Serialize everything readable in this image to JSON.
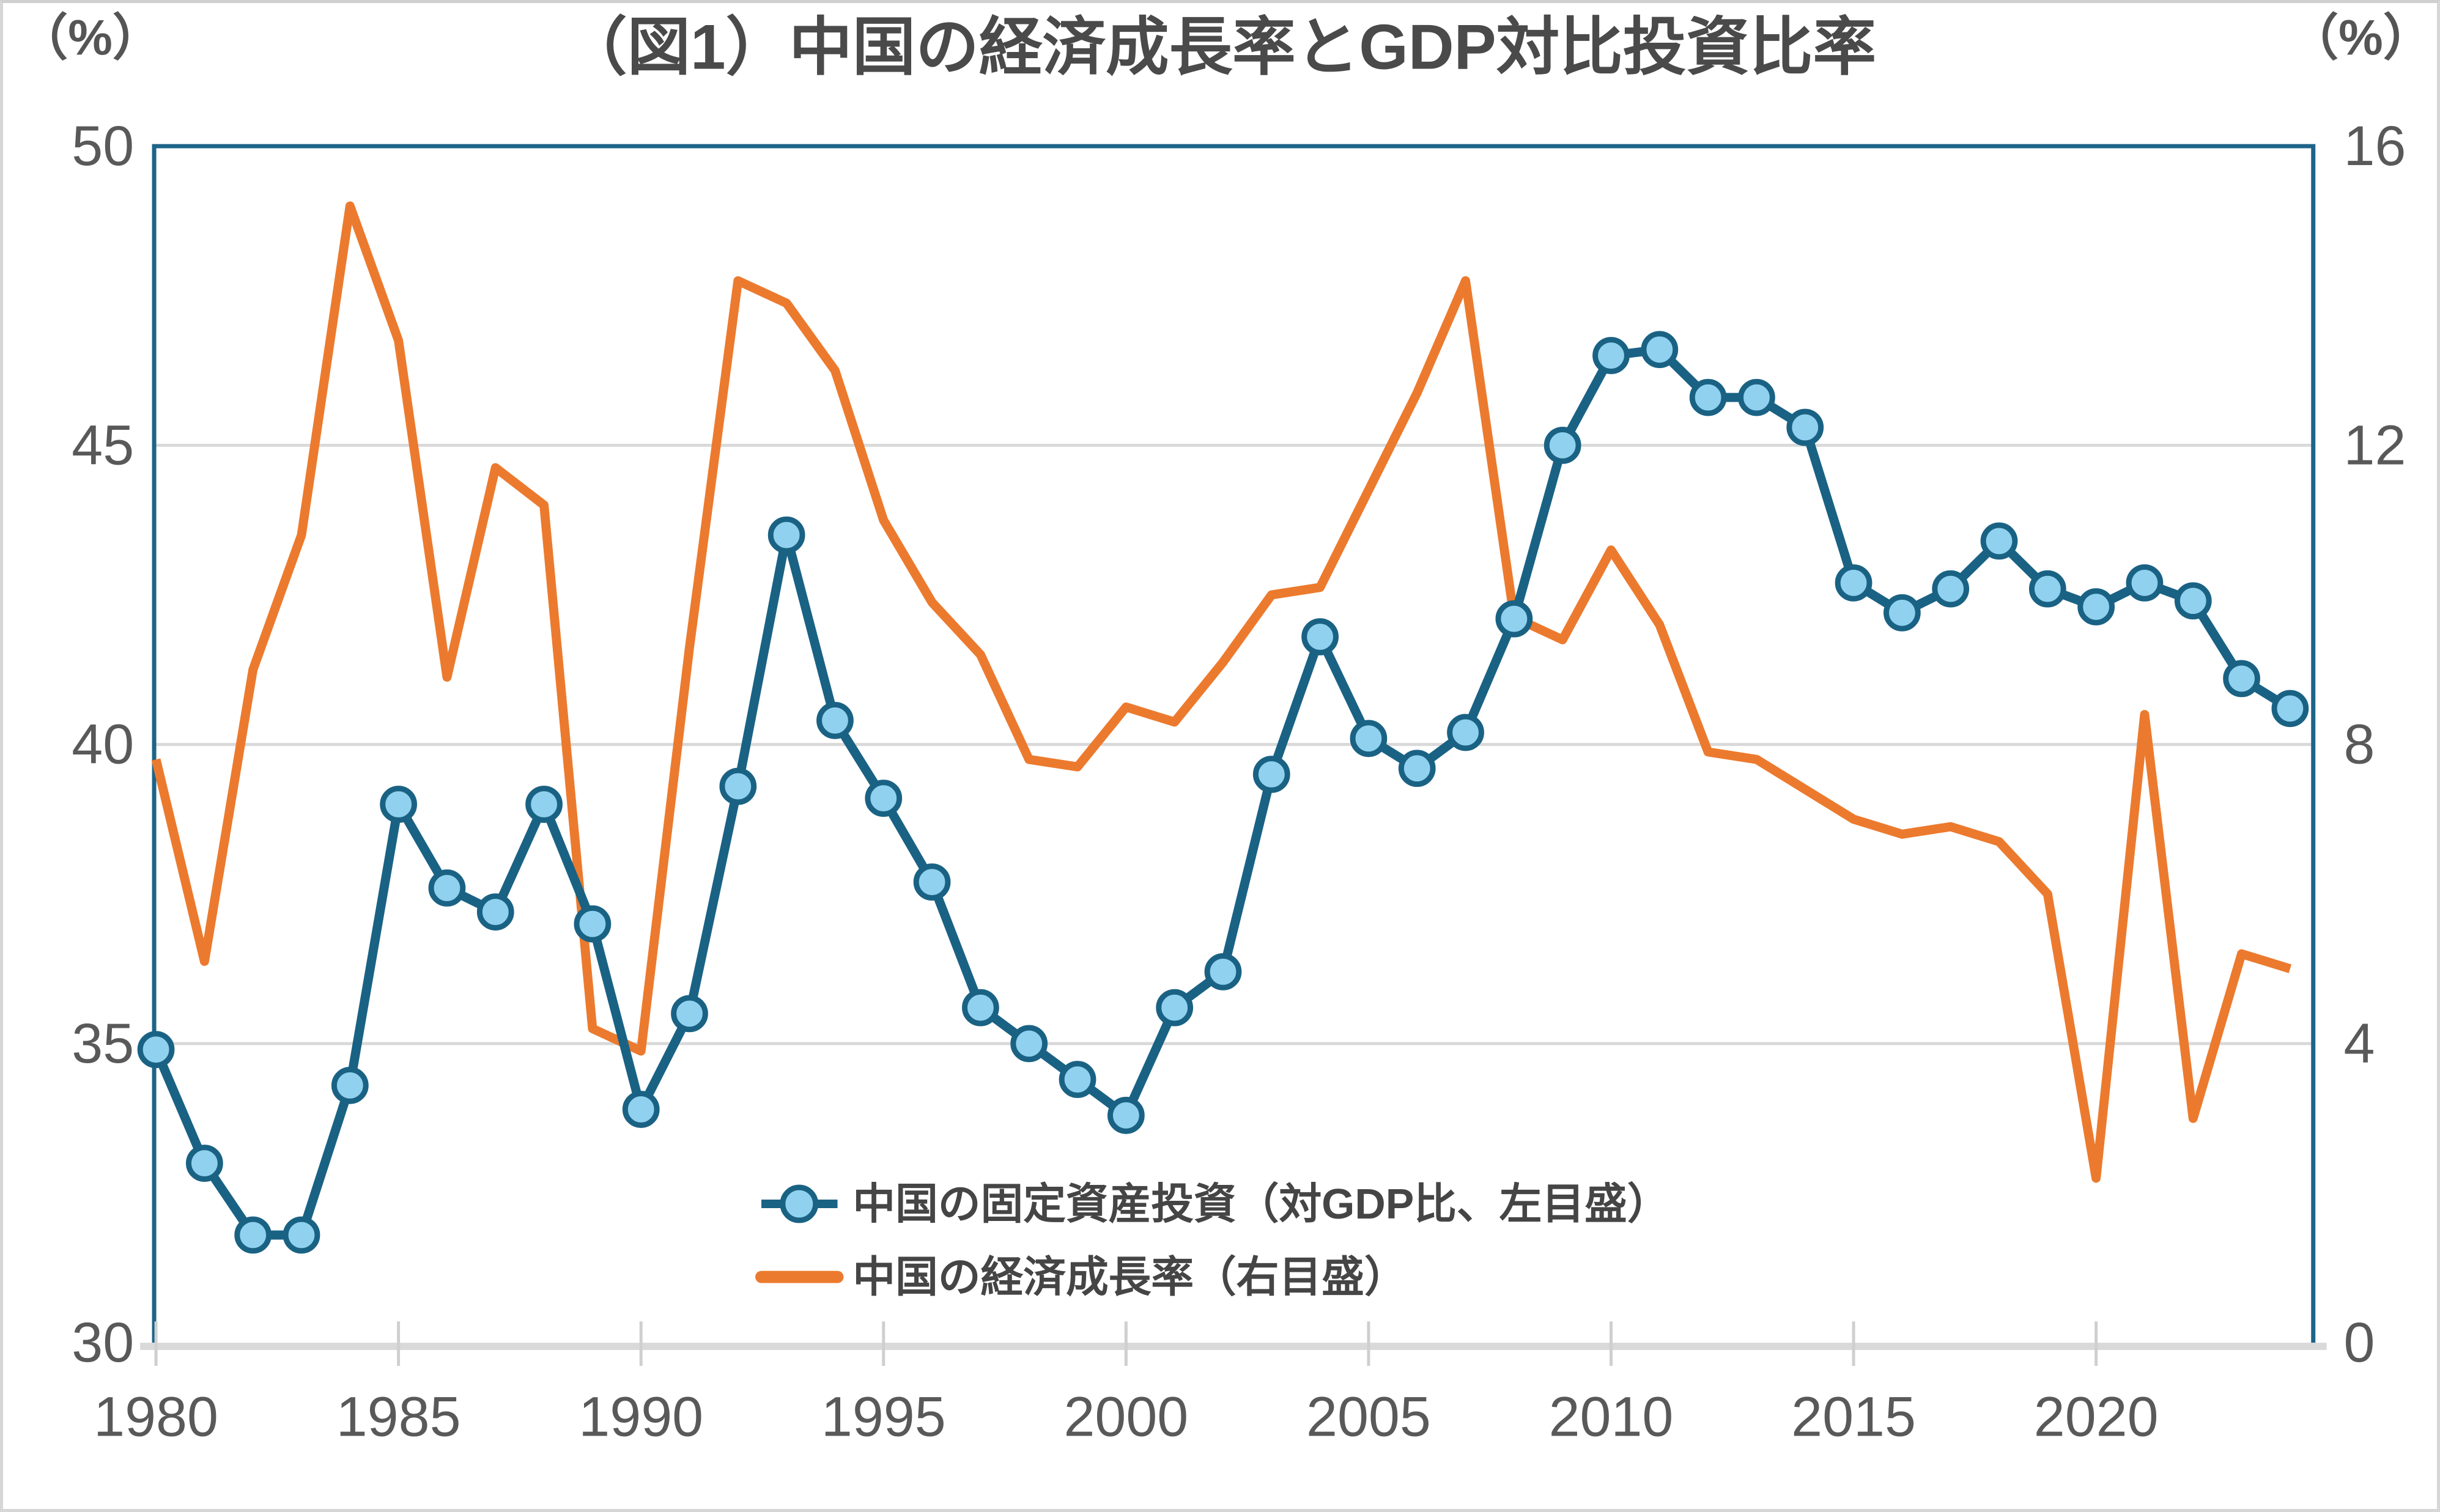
{
  "chart": {
    "title": "（図1）中国の経済成長率とGDP対比投資比率",
    "left_axis": {
      "unit_label": "（%）",
      "ticks": [
        50,
        45,
        40,
        35,
        30
      ],
      "min": 30,
      "max": 50
    },
    "right_axis": {
      "unit_label": "（%）",
      "ticks": [
        16,
        12,
        8,
        4,
        0
      ],
      "min": 0,
      "max": 16
    },
    "x_axis": {
      "tick_years": [
        1980,
        1985,
        1990,
        1995,
        2000,
        2005,
        2010,
        2015,
        2020
      ]
    },
    "colors": {
      "investment_line": "#1a6284",
      "investment_marker_fill": "#90d1ef",
      "growth_line": "#ec7a2e",
      "gridline": "#d9d9d9",
      "plot_border": "#1d6488",
      "bottom_axis": "#d9d9d9",
      "axis_tick": "#cfcfcf",
      "text": "#595959"
    }
  },
  "chart_data": {
    "type": "line",
    "title": "（図1）中国の経済成長率とGDP対比投資比率",
    "x": [
      1980,
      1981,
      1982,
      1983,
      1984,
      1985,
      1986,
      1987,
      1988,
      1989,
      1990,
      1991,
      1992,
      1993,
      1994,
      1995,
      1996,
      1997,
      1998,
      1999,
      2000,
      2001,
      2002,
      2003,
      2004,
      2005,
      2006,
      2007,
      2008,
      2009,
      2010,
      2011,
      2012,
      2013,
      2014,
      2015,
      2016,
      2017,
      2018,
      2019,
      2020,
      2021,
      2022,
      2023,
      2024
    ],
    "series": [
      {
        "name": "中国の固定資産投資（対GDP比、左目盛）",
        "axis": "left",
        "color": "#1a6284",
        "marker_fill": "#90d1ef",
        "values": [
          34.9,
          33.0,
          31.8,
          31.8,
          34.3,
          39.0,
          37.6,
          37.2,
          39.0,
          37.0,
          33.9,
          35.5,
          39.3,
          43.5,
          40.4,
          39.1,
          37.7,
          35.6,
          35.0,
          34.4,
          33.8,
          35.6,
          36.2,
          39.5,
          41.8,
          40.1,
          39.6,
          40.2,
          42.1,
          45.0,
          46.5,
          46.6,
          45.8,
          45.8,
          45.3,
          42.7,
          42.2,
          42.6,
          43.4,
          42.6,
          42.3,
          42.7,
          42.4,
          41.1,
          40.6
        ]
      },
      {
        "name": "中国の経済成長率（右目盛）",
        "axis": "right",
        "color": "#ec7a2e",
        "values": [
          7.8,
          5.1,
          9.0,
          10.8,
          15.2,
          13.4,
          8.9,
          11.7,
          11.2,
          4.2,
          3.9,
          9.3,
          14.2,
          13.9,
          13.0,
          11.0,
          9.9,
          9.2,
          7.8,
          7.7,
          8.5,
          8.3,
          9.1,
          10.0,
          10.1,
          11.4,
          12.7,
          14.2,
          9.7,
          9.4,
          10.6,
          9.6,
          7.9,
          7.8,
          7.4,
          7.0,
          6.8,
          6.9,
          6.7,
          6.0,
          2.2,
          8.4,
          3.0,
          5.2,
          5.0
        ]
      }
    ],
    "left_ylim": [
      30,
      50
    ],
    "right_ylim": [
      0,
      16
    ],
    "grid": true,
    "legend_position": "inside-bottom-center"
  }
}
